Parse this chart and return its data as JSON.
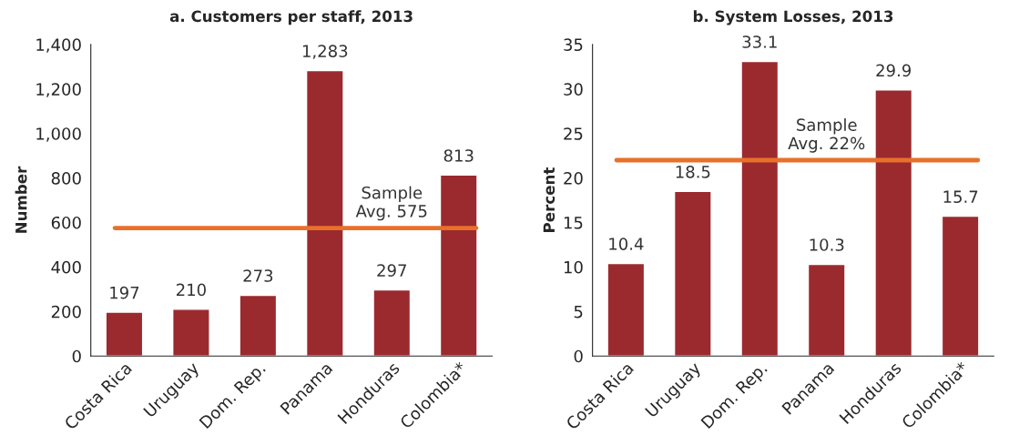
{
  "chart_data": [
    {
      "type": "bar",
      "title": "a. Customers per staff, 2013",
      "ylabel": "Number",
      "categories": [
        "Costa Rica",
        "Uruguay",
        "Dom. Rep.",
        "Panama",
        "Honduras",
        "Colombia*"
      ],
      "values": [
        197,
        210,
        273,
        1283,
        297,
        813
      ],
      "color": "#9b2a2e",
      "data_labels": true,
      "value_labels": [
        "197",
        "210",
        "273",
        "1,283",
        "297",
        "813"
      ],
      "ylim": [
        0,
        1400
      ],
      "yticks": [
        0,
        {
          "value": 200,
          "label": "200"
        },
        {
          "value": 400,
          "label": "400"
        },
        {
          "value": 600,
          "label": "600"
        },
        {
          "value": 800,
          "label": "800"
        },
        {
          "value": 1000,
          "label": "1,000"
        },
        {
          "value": 1200,
          "label": "1,200"
        },
        {
          "value": 1400,
          "label": "1,400"
        }
      ],
      "ref_lines": [
        {
          "axis": "y",
          "value": 575,
          "label": "Sample\nAvg. 575",
          "color": "#e8702a"
        }
      ],
      "grid": false,
      "legend": false
    },
    {
      "type": "bar",
      "title": "b. System Losses, 2013",
      "ylabel": "Percent",
      "categories": [
        "Costa Rica",
        "Uruguay",
        "Dom. Rep.",
        "Panama",
        "Honduras",
        "Colombia*"
      ],
      "values": [
        10.4,
        18.5,
        33.1,
        10.3,
        29.9,
        15.7
      ],
      "color": "#9b2a2e",
      "data_labels": true,
      "ylim": [
        0,
        35
      ],
      "yticks": [
        0,
        5,
        10,
        15,
        20,
        25,
        30,
        35
      ],
      "ref_lines": [
        {
          "axis": "y",
          "value": 22,
          "label": "Sample\nAvg. 22%",
          "color": "#e8702a"
        }
      ],
      "grid": false,
      "legend": false
    }
  ]
}
